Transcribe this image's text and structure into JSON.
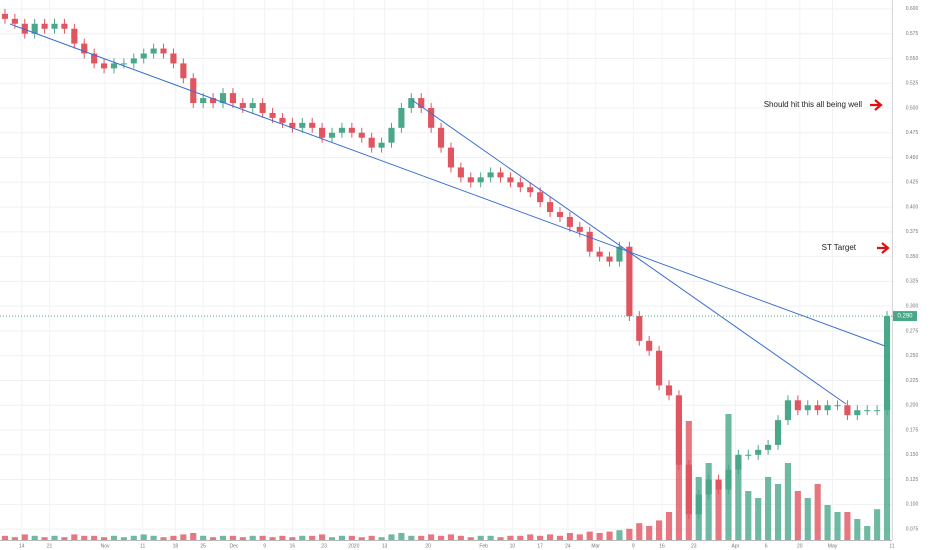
{
  "chart_data": {
    "type": "candlestick",
    "open": [
      0.595,
      0.59,
      0.585,
      0.575,
      0.585,
      0.58,
      0.585,
      0.58,
      0.565,
      0.555,
      0.545,
      0.54,
      0.545,
      0.545,
      0.55,
      0.555,
      0.56,
      0.555,
      0.545,
      0.53,
      0.505,
      0.51,
      0.505,
      0.515,
      0.505,
      0.5,
      0.505,
      0.495,
      0.49,
      0.485,
      0.48,
      0.485,
      0.48,
      0.47,
      0.475,
      0.48,
      0.475,
      0.47,
      0.46,
      0.465,
      0.48,
      0.5,
      0.51,
      0.5,
      0.48,
      0.46,
      0.44,
      0.43,
      0.425,
      0.43,
      0.435,
      0.43,
      0.425,
      0.42,
      0.415,
      0.405,
      0.395,
      0.39,
      0.38,
      0.375,
      0.355,
      0.35,
      0.345,
      0.36,
      0.29,
      0.265,
      0.255,
      0.22,
      0.21,
      0.14,
      0.09,
      0.11,
      0.125,
      0.115,
      0.135,
      0.15,
      0.15,
      0.155,
      0.16,
      0.185,
      0.205,
      0.195,
      0.2,
      0.195,
      0.2,
      0.2,
      0.19,
      0.195,
      0.195,
      0.195
    ],
    "high": [
      0.6,
      0.595,
      0.59,
      0.59,
      0.59,
      0.59,
      0.59,
      0.585,
      0.57,
      0.56,
      0.55,
      0.55,
      0.55,
      0.555,
      0.56,
      0.565,
      0.565,
      0.56,
      0.55,
      0.535,
      0.515,
      0.515,
      0.52,
      0.52,
      0.51,
      0.51,
      0.51,
      0.5,
      0.495,
      0.49,
      0.49,
      0.49,
      0.485,
      0.48,
      0.485,
      0.485,
      0.48,
      0.475,
      0.47,
      0.485,
      0.505,
      0.515,
      0.515,
      0.505,
      0.485,
      0.465,
      0.445,
      0.435,
      0.435,
      0.44,
      0.44,
      0.435,
      0.43,
      0.425,
      0.42,
      0.41,
      0.4,
      0.395,
      0.385,
      0.38,
      0.36,
      0.355,
      0.365,
      0.365,
      0.295,
      0.27,
      0.26,
      0.225,
      0.215,
      0.145,
      0.115,
      0.13,
      0.13,
      0.14,
      0.155,
      0.155,
      0.16,
      0.165,
      0.19,
      0.21,
      0.21,
      0.205,
      0.205,
      0.205,
      0.205,
      0.205,
      0.2,
      0.2,
      0.2,
      0.295
    ],
    "low": [
      0.585,
      0.58,
      0.57,
      0.57,
      0.575,
      0.575,
      0.575,
      0.56,
      0.55,
      0.54,
      0.535,
      0.535,
      0.54,
      0.54,
      0.545,
      0.55,
      0.55,
      0.54,
      0.525,
      0.5,
      0.5,
      0.5,
      0.5,
      0.5,
      0.495,
      0.495,
      0.49,
      0.485,
      0.48,
      0.475,
      0.475,
      0.475,
      0.465,
      0.465,
      0.47,
      0.47,
      0.465,
      0.455,
      0.455,
      0.46,
      0.475,
      0.495,
      0.495,
      0.475,
      0.455,
      0.435,
      0.425,
      0.42,
      0.42,
      0.425,
      0.425,
      0.42,
      0.415,
      0.41,
      0.4,
      0.39,
      0.385,
      0.375,
      0.37,
      0.35,
      0.345,
      0.34,
      0.34,
      0.285,
      0.26,
      0.25,
      0.215,
      0.205,
      0.135,
      0.085,
      0.085,
      0.105,
      0.11,
      0.11,
      0.13,
      0.145,
      0.145,
      0.15,
      0.155,
      0.18,
      0.19,
      0.19,
      0.19,
      0.19,
      0.195,
      0.185,
      0.185,
      0.19,
      0.19,
      0.19
    ],
    "close": [
      0.59,
      0.585,
      0.575,
      0.585,
      0.58,
      0.585,
      0.58,
      0.565,
      0.555,
      0.545,
      0.54,
      0.545,
      0.545,
      0.55,
      0.555,
      0.56,
      0.555,
      0.545,
      0.53,
      0.505,
      0.51,
      0.505,
      0.515,
      0.505,
      0.5,
      0.505,
      0.495,
      0.49,
      0.485,
      0.48,
      0.485,
      0.48,
      0.47,
      0.475,
      0.48,
      0.475,
      0.47,
      0.46,
      0.465,
      0.48,
      0.5,
      0.51,
      0.5,
      0.48,
      0.46,
      0.44,
      0.43,
      0.425,
      0.43,
      0.435,
      0.43,
      0.425,
      0.42,
      0.415,
      0.405,
      0.395,
      0.39,
      0.38,
      0.375,
      0.355,
      0.35,
      0.345,
      0.36,
      0.29,
      0.265,
      0.255,
      0.22,
      0.21,
      0.14,
      0.09,
      0.11,
      0.125,
      0.115,
      0.135,
      0.15,
      0.15,
      0.155,
      0.16,
      0.185,
      0.205,
      0.195,
      0.2,
      0.195,
      0.2,
      0.2,
      0.19,
      0.195,
      0.195,
      0.195,
      0.29
    ],
    "volume": [
      3,
      2,
      4,
      3,
      2,
      3,
      2,
      4,
      3,
      3,
      2,
      3,
      2,
      3,
      4,
      3,
      2,
      3,
      4,
      5,
      3,
      2,
      3,
      3,
      2,
      3,
      3,
      2,
      3,
      2,
      3,
      3,
      4,
      2,
      3,
      3,
      2,
      3,
      2,
      4,
      5,
      3,
      3,
      4,
      3,
      4,
      3,
      2,
      3,
      3,
      2,
      3,
      3,
      4,
      3,
      4,
      3,
      5,
      4,
      6,
      5,
      6,
      7,
      8,
      12,
      10,
      14,
      20,
      95,
      85,
      45,
      55,
      40,
      90,
      60,
      35,
      30,
      45,
      40,
      55,
      35,
      30,
      40,
      25,
      20,
      20,
      15,
      10,
      22,
      100
    ],
    "volume_lim": [
      0,
      100
    ],
    "up_color": "#4aa88a",
    "down_color": "#e05560",
    "xlim": [
      -0.5,
      89.5
    ],
    "xticks": [
      {
        "value": 1.7,
        "label": "14"
      },
      {
        "value": 4.5,
        "label": "21"
      },
      {
        "value": 10.1,
        "label": "Nov"
      },
      {
        "value": 13.9,
        "label": "11"
      },
      {
        "value": 17.2,
        "label": "18"
      },
      {
        "value": 20,
        "label": "25"
      },
      {
        "value": 23.1,
        "label": "Dec"
      },
      {
        "value": 26.2,
        "label": "9"
      },
      {
        "value": 29,
        "label": "16"
      },
      {
        "value": 32.2,
        "label": "23"
      },
      {
        "value": 35.2,
        "label": "2020"
      },
      {
        "value": 38.3,
        "label": "13"
      },
      {
        "value": 42.7,
        "label": "20"
      },
      {
        "value": 48.3,
        "label": "Feb"
      },
      {
        "value": 51.2,
        "label": "10"
      },
      {
        "value": 54,
        "label": "17"
      },
      {
        "value": 56.8,
        "label": "24"
      },
      {
        "value": 59.6,
        "label": "Mar"
      },
      {
        "value": 63.4,
        "label": "9"
      },
      {
        "value": 66.3,
        "label": "16"
      },
      {
        "value": 69.5,
        "label": "23"
      },
      {
        "value": 73.7,
        "label": "Apr"
      },
      {
        "value": 76.8,
        "label": "6"
      },
      {
        "value": 80.2,
        "label": "20"
      },
      {
        "value": 83.5,
        "label": "May"
      },
      {
        "value": 89.5,
        "label": "11"
      }
    ],
    "ylim": [
      0.064,
      0.609
    ],
    "yticks": [
      {
        "value": 0.075,
        "label": "0.075"
      },
      {
        "value": 0.1,
        "label": "0.100"
      },
      {
        "value": 0.125,
        "label": "0.125"
      },
      {
        "value": 0.15,
        "label": "0.150"
      },
      {
        "value": 0.175,
        "label": "0.175"
      },
      {
        "value": 0.2,
        "label": "0.200"
      },
      {
        "value": 0.225,
        "label": "0.225"
      },
      {
        "value": 0.25,
        "label": "0.250"
      },
      {
        "value": 0.275,
        "label": "0.275"
      },
      {
        "value": 0.3,
        "label": "0.300"
      },
      {
        "value": 0.325,
        "label": "0.325"
      },
      {
        "value": 0.35,
        "label": "0.350"
      },
      {
        "value": 0.375,
        "label": "0.375"
      },
      {
        "value": 0.4,
        "label": "0.400"
      },
      {
        "value": 0.425,
        "label": "0.425"
      },
      {
        "value": 0.45,
        "label": "0.450"
      },
      {
        "value": 0.475,
        "label": "0.475"
      },
      {
        "value": 0.5,
        "label": "0.500"
      },
      {
        "value": 0.525,
        "label": "0.525"
      },
      {
        "value": 0.55,
        "label": "0.550"
      },
      {
        "value": 0.575,
        "label": "0.575"
      },
      {
        "value": 0.6,
        "label": "0.600"
      }
    ],
    "grid": true,
    "last_price": {
      "value": 0.29,
      "label": "0.290"
    },
    "annotations": [
      "Should hit this all being well",
      "ST Target"
    ]
  }
}
